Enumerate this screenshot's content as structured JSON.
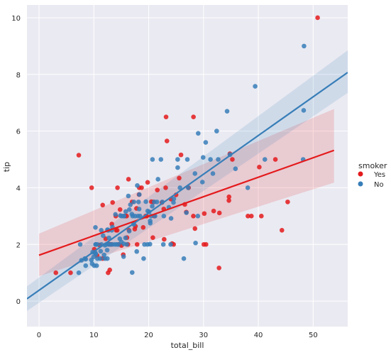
{
  "chart_data": {
    "type": "scatter",
    "title": "",
    "xlabel": "total_bill",
    "ylabel": "tip",
    "xlim": [
      -2.2,
      56.3
    ],
    "ylim": [
      -0.9,
      10.45
    ],
    "xticks": [
      0,
      10,
      20,
      30,
      40,
      50
    ],
    "yticks": [
      0,
      2,
      4,
      6,
      8,
      10
    ],
    "grid": true,
    "background": "#eaeaf2",
    "legend": {
      "title": "smoker",
      "placement": "right"
    },
    "series": [
      {
        "name": "Yes",
        "color": "#e41a1c",
        "points": [
          [
            3.07,
            1.0
          ],
          [
            5.75,
            1.0
          ],
          [
            7.25,
            5.15
          ],
          [
            9.6,
            4.0
          ],
          [
            10.07,
            1.83
          ],
          [
            10.59,
            1.61
          ],
          [
            11.02,
            1.98
          ],
          [
            11.59,
            1.5
          ],
          [
            11.61,
            3.39
          ],
          [
            12.16,
            2.2
          ],
          [
            12.6,
            1.0
          ],
          [
            12.74,
            2.01
          ],
          [
            12.9,
            1.1
          ],
          [
            13.0,
            2.0
          ],
          [
            13.13,
            2.0
          ],
          [
            13.16,
            2.0
          ],
          [
            13.28,
            2.72
          ],
          [
            13.42,
            3.48
          ],
          [
            14.0,
            3.0
          ],
          [
            14.07,
            2.5
          ],
          [
            14.26,
            2.5
          ],
          [
            14.31,
            4.0
          ],
          [
            14.52,
            2.0
          ],
          [
            14.78,
            3.23
          ],
          [
            15.04,
            1.96
          ],
          [
            15.36,
            1.64
          ],
          [
            15.69,
            3.0
          ],
          [
            15.98,
            3.0
          ],
          [
            16.04,
            2.24
          ],
          [
            16.21,
            2.0
          ],
          [
            16.32,
            4.3
          ],
          [
            16.4,
            2.5
          ],
          [
            16.97,
            3.5
          ],
          [
            17.46,
            2.54
          ],
          [
            17.59,
            2.64
          ],
          [
            17.78,
            3.27
          ],
          [
            17.89,
            2.0
          ],
          [
            18.24,
            3.76
          ],
          [
            18.28,
            4.0
          ],
          [
            18.71,
            4.0
          ],
          [
            19.0,
            2.6
          ],
          [
            19.44,
            3.0
          ],
          [
            19.65,
            3.0
          ],
          [
            19.81,
            4.19
          ],
          [
            20.49,
            3.51
          ],
          [
            20.76,
            2.24
          ],
          [
            20.9,
            3.5
          ],
          [
            21.0,
            3.0
          ],
          [
            21.58,
            3.92
          ],
          [
            22.42,
            3.48
          ],
          [
            22.75,
            3.25
          ],
          [
            22.82,
            2.18
          ],
          [
            23.1,
            4.0
          ],
          [
            23.17,
            6.5
          ],
          [
            23.33,
            5.65
          ],
          [
            24.06,
            3.6
          ],
          [
            24.27,
            2.03
          ],
          [
            24.55,
            2.0
          ],
          [
            25.0,
            3.75
          ],
          [
            25.56,
            4.34
          ],
          [
            25.89,
            5.16
          ],
          [
            26.59,
            3.41
          ],
          [
            26.86,
            3.14
          ],
          [
            27.28,
            4.0
          ],
          [
            28.15,
            3.0
          ],
          [
            28.17,
            6.5
          ],
          [
            28.44,
            2.56
          ],
          [
            30.06,
            2.0
          ],
          [
            30.14,
            3.09
          ],
          [
            30.46,
            2.0
          ],
          [
            31.85,
            3.18
          ],
          [
            32.83,
            1.17
          ],
          [
            32.9,
            3.11
          ],
          [
            34.63,
            3.55
          ],
          [
            34.65,
            3.68
          ],
          [
            34.81,
            5.2
          ],
          [
            35.26,
            5.0
          ],
          [
            38.1,
            3.0
          ],
          [
            38.73,
            3.0
          ],
          [
            40.55,
            3.0
          ],
          [
            43.11,
            5.0
          ],
          [
            44.3,
            2.5
          ],
          [
            45.35,
            3.5
          ],
          [
            50.81,
            10.0
          ],
          [
            40.17,
            4.73
          ]
        ]
      },
      {
        "name": "No",
        "color": "#377eb8",
        "points": [
          [
            7.25,
            1.0
          ],
          [
            7.51,
            2.0
          ],
          [
            7.74,
            1.44
          ],
          [
            8.35,
            1.5
          ],
          [
            8.51,
            1.25
          ],
          [
            8.52,
            1.48
          ],
          [
            9.55,
            1.45
          ],
          [
            9.68,
            1.32
          ],
          [
            9.78,
            1.73
          ],
          [
            9.94,
            1.56
          ],
          [
            10.07,
            1.25
          ],
          [
            10.27,
            1.71
          ],
          [
            10.29,
            2.6
          ],
          [
            10.33,
            1.67
          ],
          [
            10.33,
            2.0
          ],
          [
            10.34,
            1.66
          ],
          [
            10.34,
            2.0
          ],
          [
            10.51,
            1.25
          ],
          [
            10.63,
            2.0
          ],
          [
            10.65,
            1.5
          ],
          [
            11.17,
            1.5
          ],
          [
            11.24,
            1.76
          ],
          [
            11.35,
            2.5
          ],
          [
            11.38,
            2.0
          ],
          [
            11.69,
            2.31
          ],
          [
            11.87,
            1.63
          ],
          [
            12.02,
            1.97
          ],
          [
            12.03,
            1.5
          ],
          [
            12.26,
            2.0
          ],
          [
            12.43,
            1.8
          ],
          [
            12.46,
            1.5
          ],
          [
            12.48,
            2.52
          ],
          [
            12.54,
            2.5
          ],
          [
            12.66,
            2.5
          ],
          [
            12.69,
            2.0
          ],
          [
            12.76,
            2.23
          ],
          [
            13.03,
            2.0
          ],
          [
            13.27,
            2.5
          ],
          [
            13.37,
            2.0
          ],
          [
            13.39,
            2.61
          ],
          [
            13.81,
            2.0
          ],
          [
            13.94,
            3.06
          ],
          [
            14.15,
            2.0
          ],
          [
            14.48,
            2.0
          ],
          [
            14.73,
            2.2
          ],
          [
            14.83,
            3.02
          ],
          [
            15.01,
            2.09
          ],
          [
            15.06,
            3.0
          ],
          [
            15.38,
            3.0
          ],
          [
            15.42,
            1.57
          ],
          [
            15.48,
            2.02
          ],
          [
            15.53,
            3.0
          ],
          [
            15.77,
            2.23
          ],
          [
            15.81,
            3.16
          ],
          [
            16.0,
            2.0
          ],
          [
            16.29,
            3.71
          ],
          [
            16.45,
            2.47
          ],
          [
            16.47,
            3.23
          ],
          [
            16.66,
            3.4
          ],
          [
            16.93,
            3.07
          ],
          [
            16.99,
            1.01
          ],
          [
            17.07,
            3.0
          ],
          [
            17.26,
            2.74
          ],
          [
            17.29,
            2.71
          ],
          [
            17.31,
            3.5
          ],
          [
            17.51,
            3.0
          ],
          [
            17.82,
            1.75
          ],
          [
            17.92,
            4.08
          ],
          [
            18.04,
            3.0
          ],
          [
            18.15,
            3.5
          ],
          [
            18.26,
            3.25
          ],
          [
            18.29,
            3.76
          ],
          [
            18.43,
            3.0
          ],
          [
            19.08,
            1.5
          ],
          [
            19.23,
            2.0
          ],
          [
            19.49,
            3.51
          ],
          [
            19.77,
            2.0
          ],
          [
            19.82,
            3.18
          ],
          [
            20.23,
            2.01
          ],
          [
            20.27,
            2.83
          ],
          [
            20.29,
            2.75
          ],
          [
            20.45,
            3.0
          ],
          [
            20.65,
            3.35
          ],
          [
            20.69,
            5.0
          ],
          [
            21.01,
            3.5
          ],
          [
            21.16,
            3.0
          ],
          [
            21.5,
            3.5
          ],
          [
            21.7,
            4.3
          ],
          [
            22.49,
            3.5
          ],
          [
            22.67,
            2.0
          ],
          [
            22.76,
            3.0
          ],
          [
            23.68,
            3.31
          ],
          [
            24.01,
            2.0
          ],
          [
            24.08,
            2.92
          ],
          [
            24.52,
            3.48
          ],
          [
            24.59,
            3.61
          ],
          [
            25.28,
            5.0
          ],
          [
            25.29,
            4.71
          ],
          [
            25.71,
            4.0
          ],
          [
            26.41,
            1.5
          ],
          [
            26.88,
            3.12
          ],
          [
            27.05,
            5.0
          ],
          [
            27.2,
            4.0
          ],
          [
            28.55,
            2.05
          ],
          [
            28.97,
            3.0
          ],
          [
            29.03,
            5.92
          ],
          [
            29.8,
            4.2
          ],
          [
            29.93,
            5.07
          ],
          [
            30.4,
            5.6
          ],
          [
            31.27,
            5.0
          ],
          [
            31.71,
            4.5
          ],
          [
            32.4,
            6.0
          ],
          [
            32.68,
            5.0
          ],
          [
            34.3,
            6.7
          ],
          [
            34.83,
            5.17
          ],
          [
            35.83,
            4.67
          ],
          [
            38.07,
            4.0
          ],
          [
            39.42,
            7.58
          ],
          [
            41.19,
            5.0
          ],
          [
            48.17,
            5.0
          ],
          [
            48.27,
            6.73
          ],
          [
            48.33,
            9.0
          ],
          [
            22.23,
            5.0
          ],
          [
            20.08,
            3.15
          ],
          [
            28.44,
            4.5
          ]
        ]
      }
    ],
    "fits": [
      {
        "name": "Yes",
        "color": "#e41a1c",
        "x": [
          0.0,
          53.8
        ],
        "y": [
          1.62,
          5.32
        ],
        "ci_lower": [
          0.88,
          4.18
        ],
        "ci_upper": [
          2.38,
          6.78
        ]
      },
      {
        "name": "No",
        "color": "#377eb8",
        "x": [
          -2.2,
          56.3
        ],
        "y": [
          0.08,
          8.07
        ],
        "ci_lower": [
          -0.35,
          7.35
        ],
        "ci_upper": [
          0.52,
          8.85
        ]
      }
    ]
  }
}
